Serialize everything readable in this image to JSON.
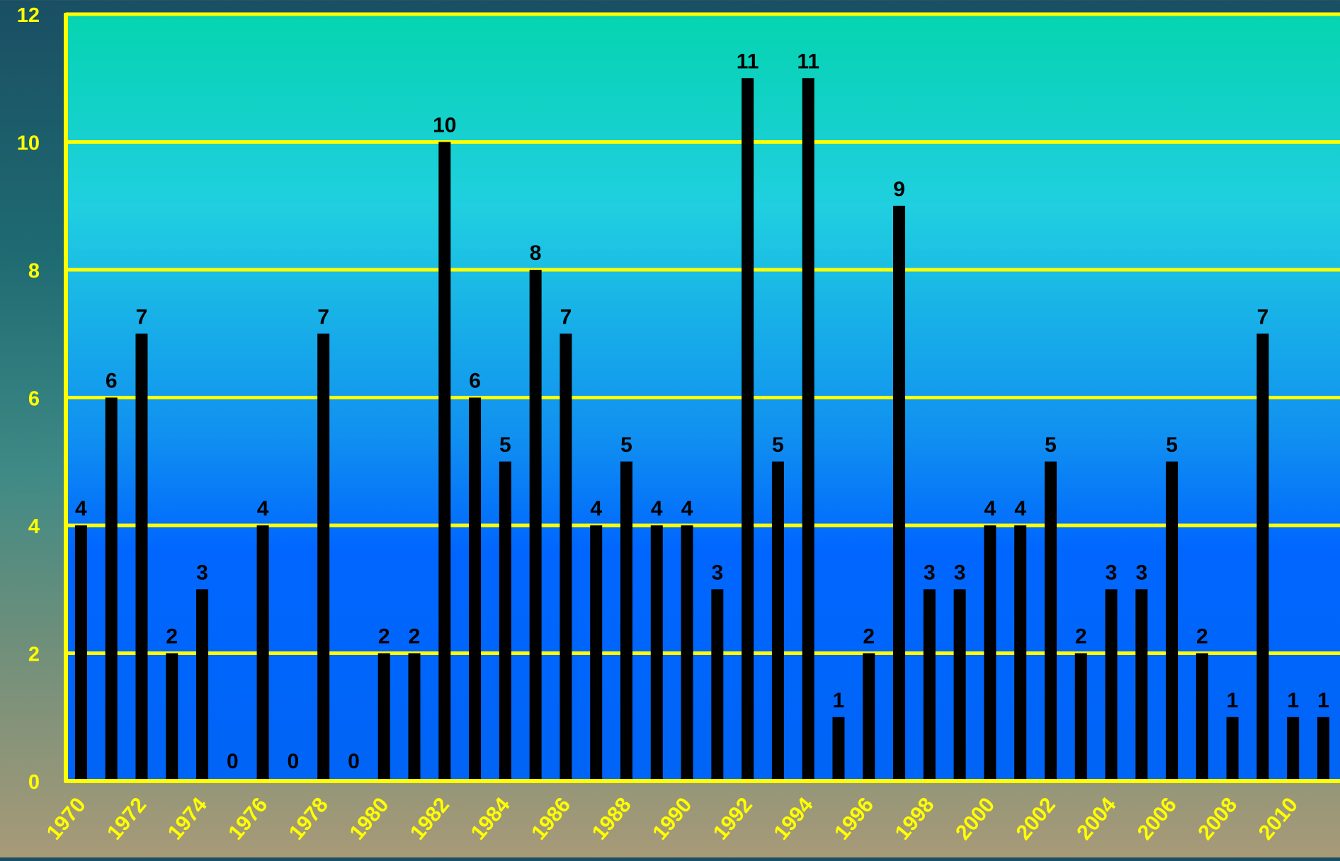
{
  "chart_data": {
    "type": "bar",
    "title": "",
    "xlabel": "",
    "ylabel": "",
    "ylim": [
      0,
      12
    ],
    "yticks": [
      0,
      2,
      4,
      6,
      8,
      10,
      12
    ],
    "categories": [
      "1970",
      "1971",
      "1972",
      "1973",
      "1974",
      "1975",
      "1976",
      "1977",
      "1978",
      "1979",
      "1980",
      "1981",
      "1982",
      "1983",
      "1984",
      "1985",
      "1986",
      "1987",
      "1988",
      "1989",
      "1990",
      "1991",
      "1992",
      "1993",
      "1994",
      "1995",
      "1996",
      "1997",
      "1998",
      "1999",
      "2000",
      "2001",
      "2002",
      "2003",
      "2004",
      "2005",
      "2006",
      "2007",
      "2008",
      "2009",
      "2010",
      "2011"
    ],
    "xtick_labels": [
      "1970",
      "1972",
      "1974",
      "1976",
      "1978",
      "1980",
      "1982",
      "1984",
      "1986",
      "1988",
      "1990",
      "1992",
      "1994",
      "1996",
      "1998",
      "2000",
      "2002",
      "2004",
      "2006",
      "2008",
      "2010"
    ],
    "values": [
      4,
      6,
      7,
      2,
      3,
      0,
      4,
      0,
      7,
      0,
      2,
      2,
      10,
      6,
      5,
      8,
      7,
      4,
      5,
      4,
      4,
      3,
      11,
      5,
      11,
      1,
      2,
      9,
      3,
      3,
      4,
      4,
      5,
      2,
      3,
      3,
      5,
      2,
      1,
      7,
      1,
      1
    ],
    "grid": true,
    "legend": "none",
    "colors": {
      "bar": "#000000",
      "axis": "#ffff00",
      "grid": "#ffff00",
      "tick_label": "#ffff00",
      "value_label": "#000000",
      "plot_top": "#05d4b0",
      "plot_mid": "#20cfe0",
      "plot_bottom": "#0064ff"
    }
  }
}
